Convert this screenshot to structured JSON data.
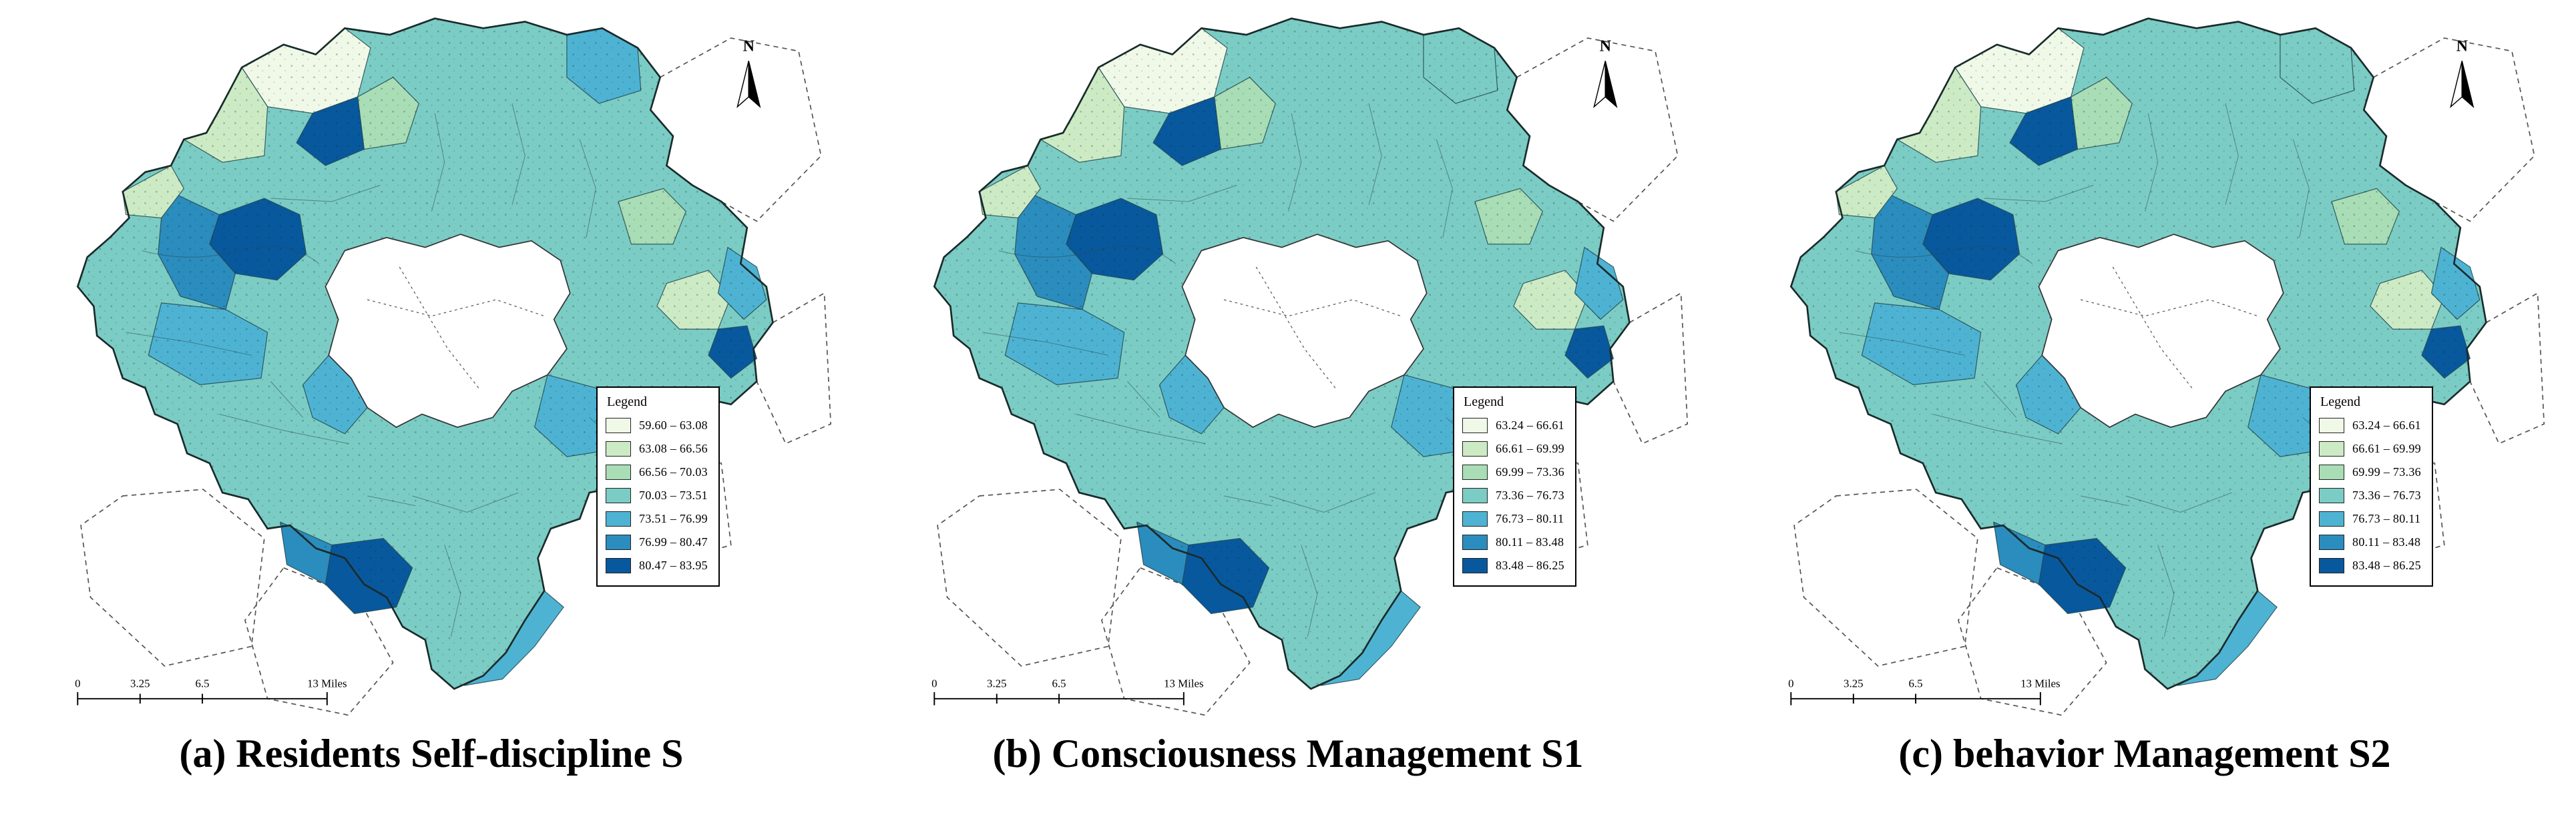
{
  "figure": {
    "background": "#ffffff",
    "palette": [
      "#f0f9e8",
      "#ccebc5",
      "#a8ddb5",
      "#7bccc4",
      "#4eb3d3",
      "#2b8cbe",
      "#08589e"
    ],
    "panels": [
      {
        "id": "a",
        "caption": "(a) Residents Self-discipline S",
        "legend_title": "Legend",
        "north_label": "N",
        "scale_labels": [
          "0",
          "3.25",
          "6.5",
          "13 Miles"
        ],
        "legend_classes": [
          "59.60 – 63.08",
          "63.08 – 66.56",
          "66.56 – 70.03",
          "70.03 – 73.51",
          "73.51 – 76.99",
          "76.99 – 80.47",
          "80.47 – 83.95"
        ]
      },
      {
        "id": "b",
        "caption": "(b) Consciousness Management S1",
        "legend_title": "Legend",
        "north_label": "N",
        "scale_labels": [
          "0",
          "3.25",
          "6.5",
          "13 Miles"
        ],
        "legend_classes": [
          "63.24 – 66.61",
          "66.61 – 69.99",
          "69.99 – 73.36",
          "73.36 – 76.73",
          "76.73 – 80.11",
          "80.11 – 83.48",
          "83.48 – 86.25"
        ]
      },
      {
        "id": "c",
        "caption": "(c) behavior Management S2",
        "legend_title": "Legend",
        "north_label": "N",
        "scale_labels": [
          "0",
          "3.25",
          "6.5",
          "13 Miles"
        ],
        "legend_classes": [
          "63.24 – 66.61",
          "66.61 – 69.99",
          "69.99 – 73.36",
          "73.36 – 76.73",
          "76.73 – 80.11",
          "80.11 – 83.48",
          "83.48 – 86.25"
        ]
      }
    ]
  },
  "map": {
    "base_class": 3,
    "patches": [
      {
        "id": "p1",
        "class": [
          0,
          0,
          0
        ]
      },
      {
        "id": "p2",
        "class": [
          1,
          1,
          1
        ]
      },
      {
        "id": "p3",
        "class": [
          2,
          2,
          2
        ]
      },
      {
        "id": "p4",
        "class": [
          6,
          6,
          6
        ]
      },
      {
        "id": "p5",
        "class": [
          6,
          6,
          6
        ]
      },
      {
        "id": "p6",
        "class": [
          5,
          5,
          5
        ]
      },
      {
        "id": "p7",
        "class": [
          1,
          1,
          1
        ]
      },
      {
        "id": "p8",
        "class": [
          4,
          4,
          4
        ]
      },
      {
        "id": "p10",
        "class": [
          6,
          6,
          6
        ]
      },
      {
        "id": "p11",
        "class": [
          5,
          5,
          5
        ]
      },
      {
        "id": "p12",
        "class": [
          4,
          4,
          4
        ]
      },
      {
        "id": "p13",
        "class": [
          1,
          1,
          1
        ]
      },
      {
        "id": "p14",
        "class": [
          2,
          2,
          2
        ]
      },
      {
        "id": "p15",
        "class": [
          6,
          6,
          6
        ]
      },
      {
        "id": "p16",
        "class": [
          4,
          4,
          4
        ]
      },
      {
        "id": "p17",
        "class": [
          4,
          3,
          3
        ]
      },
      {
        "id": "p18",
        "class": [
          4,
          4,
          4
        ]
      },
      {
        "id": "p19",
        "class": [
          4,
          4,
          4
        ]
      }
    ]
  }
}
